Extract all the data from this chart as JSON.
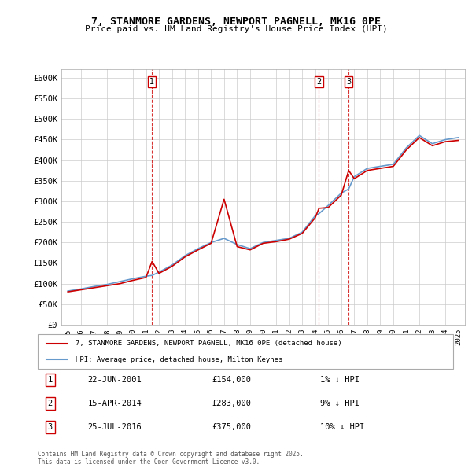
{
  "title": "7, STANMORE GARDENS, NEWPORT PAGNELL, MK16 0PE",
  "subtitle": "Price paid vs. HM Land Registry's House Price Index (HPI)",
  "ylabel": "",
  "background_color": "#ffffff",
  "grid_color": "#cccccc",
  "legend_label_red": "7, STANMORE GARDENS, NEWPORT PAGNELL, MK16 0PE (detached house)",
  "legend_label_blue": "HPI: Average price, detached house, Milton Keynes",
  "footer_line1": "Contains HM Land Registry data © Crown copyright and database right 2025.",
  "footer_line2": "This data is licensed under the Open Government Licence v3.0.",
  "sales": [
    {
      "num": 1,
      "date": "22-JUN-2001",
      "price": 154000,
      "pct": "1%",
      "x": 2001.47
    },
    {
      "num": 2,
      "date": "15-APR-2014",
      "price": 283000,
      "pct": "9%",
      "x": 2014.29
    },
    {
      "num": 3,
      "date": "25-JUL-2016",
      "price": 375000,
      "pct": "10%",
      "x": 2016.57
    }
  ],
  "hpi_years": [
    1995,
    1996,
    1997,
    1998,
    1999,
    2000,
    2001,
    2001.47,
    2002,
    2003,
    2004,
    2005,
    2006,
    2007,
    2008,
    2009,
    2010,
    2011,
    2012,
    2013,
    2014,
    2014.29,
    2015,
    2016,
    2016.57,
    2017,
    2018,
    2019,
    2020,
    2021,
    2022,
    2023,
    2024,
    2025
  ],
  "hpi_values": [
    82000,
    87000,
    93000,
    98000,
    105000,
    112000,
    118000,
    120000,
    128000,
    145000,
    168000,
    185000,
    200000,
    210000,
    195000,
    185000,
    200000,
    205000,
    210000,
    225000,
    265000,
    270000,
    290000,
    320000,
    330000,
    360000,
    380000,
    385000,
    390000,
    430000,
    460000,
    440000,
    450000,
    455000
  ],
  "price_years": [
    1995,
    1996,
    1997,
    1998,
    1999,
    2000,
    2001,
    2001.47,
    2002,
    2003,
    2004,
    2005,
    2006,
    2007,
    2008,
    2009,
    2010,
    2011,
    2012,
    2013,
    2014,
    2014.29,
    2015,
    2016,
    2016.57,
    2017,
    2018,
    2019,
    2020,
    2021,
    2022,
    2023,
    2024,
    2025
  ],
  "price_values": [
    80000,
    85000,
    90000,
    95000,
    100000,
    108000,
    115000,
    154000,
    125000,
    142000,
    165000,
    182000,
    198000,
    305000,
    190000,
    182000,
    198000,
    202000,
    208000,
    222000,
    260000,
    283000,
    285000,
    315000,
    375000,
    355000,
    375000,
    380000,
    385000,
    425000,
    455000,
    435000,
    445000,
    448000
  ],
  "xlim": [
    1994.5,
    2025.5
  ],
  "ylim": [
    0,
    620000
  ],
  "yticks": [
    0,
    50000,
    100000,
    150000,
    200000,
    250000,
    300000,
    350000,
    400000,
    450000,
    500000,
    550000,
    600000
  ],
  "ytick_labels": [
    "£0",
    "£50K",
    "£100K",
    "£150K",
    "£200K",
    "£250K",
    "£300K",
    "£350K",
    "£400K",
    "£450K",
    "£500K",
    "£550K",
    "£600K"
  ],
  "xtick_years": [
    1995,
    1996,
    1997,
    1998,
    1999,
    2000,
    2001,
    2002,
    2003,
    2004,
    2005,
    2006,
    2007,
    2008,
    2009,
    2010,
    2011,
    2012,
    2013,
    2014,
    2015,
    2016,
    2017,
    2018,
    2019,
    2020,
    2021,
    2022,
    2023,
    2024,
    2025
  ],
  "red_line_color": "#cc0000",
  "blue_line_color": "#6699cc",
  "dashed_line_color": "#cc0000",
  "sale_box_color": "#cc0000",
  "annotation_box_bg": "#ffffff"
}
